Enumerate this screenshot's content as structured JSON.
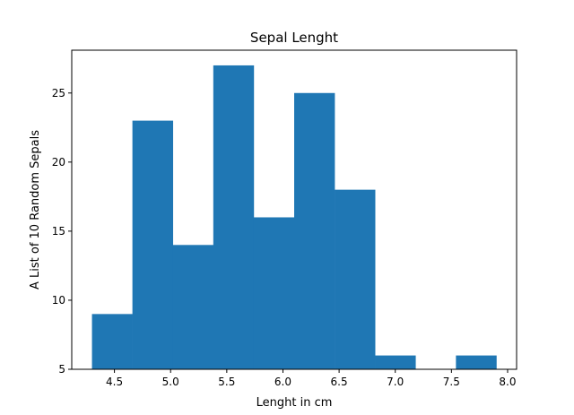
{
  "chart_data": {
    "type": "bar",
    "title": "Sepal Lenght",
    "xlabel": "Lenght in cm",
    "ylabel": "A List of 10 Random Sepals",
    "bin_edges": [
      4.3,
      4.66,
      5.02,
      5.38,
      5.74,
      6.1,
      6.46,
      6.82,
      7.18,
      7.54,
      7.9
    ],
    "values": [
      9,
      23,
      14,
      27,
      16,
      25,
      18,
      6,
      5,
      6
    ],
    "xlim": [
      4.12,
      8.08
    ],
    "ylim": [
      5,
      28.1
    ],
    "xticks": [
      "4.5",
      "5.0",
      "5.5",
      "6.0",
      "6.5",
      "7.0",
      "7.5",
      "8.0"
    ],
    "yticks": [
      "5",
      "10",
      "15",
      "20",
      "25"
    ],
    "bar_color": "#1f77b4",
    "grid": false,
    "legend": "none"
  }
}
